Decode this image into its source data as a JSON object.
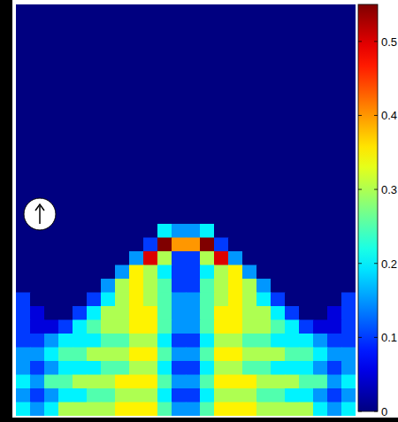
{
  "chart_data": {
    "type": "heatmap",
    "tick_labels": false,
    "colorbar_range": [
      0,
      0.55
    ],
    "colorbar_ticks": [
      0,
      0.1,
      0.2,
      0.3,
      0.4,
      0.5
    ],
    "cells": [
      [
        0,
        0,
        0,
        0,
        0,
        0,
        0,
        0,
        0,
        0,
        0,
        0,
        0,
        0,
        0,
        0,
        0,
        0,
        0,
        0,
        0,
        0,
        0,
        0
      ],
      [
        0,
        0,
        0,
        0,
        0,
        0,
        0,
        0,
        0,
        0,
        0,
        0,
        0,
        0,
        0,
        0,
        0,
        0,
        0,
        0,
        0,
        0,
        0,
        0
      ],
      [
        0,
        0,
        0,
        0,
        0,
        0,
        0,
        0,
        0,
        0,
        0,
        0,
        0,
        0,
        0,
        0,
        0,
        0,
        0,
        0,
        0,
        0,
        0,
        0
      ],
      [
        0,
        0,
        0,
        0,
        0,
        0,
        0,
        0,
        0,
        0,
        0,
        0,
        0,
        0,
        0,
        0,
        0,
        0,
        0,
        0,
        0,
        0,
        0,
        0
      ],
      [
        0,
        0,
        0,
        0,
        0,
        0,
        0,
        0,
        0,
        0,
        0,
        0,
        0,
        0,
        0,
        0,
        0,
        0,
        0,
        0,
        0,
        0,
        0,
        0
      ],
      [
        0,
        0,
        0,
        0,
        0,
        0,
        0,
        0,
        0,
        0,
        0,
        0,
        0,
        0,
        0,
        0,
        0,
        0,
        0,
        0,
        0,
        0,
        0,
        0
      ],
      [
        0,
        0,
        0,
        0,
        0,
        0,
        0,
        0,
        0,
        0,
        0,
        0,
        0,
        0,
        0,
        0,
        0,
        0,
        0,
        0,
        0,
        0,
        0,
        0
      ],
      [
        0,
        0,
        0,
        0,
        0,
        0,
        0,
        0,
        0,
        0,
        0,
        0,
        0,
        0,
        0,
        0,
        0,
        0,
        0,
        0,
        0,
        0,
        0,
        0
      ],
      [
        0,
        0,
        0,
        0,
        0,
        0,
        0,
        0,
        0,
        0,
        0,
        0,
        0,
        0,
        0,
        0,
        0,
        0,
        0,
        0,
        0,
        0,
        0,
        0
      ],
      [
        0,
        0,
        0,
        0,
        0,
        0,
        0,
        0,
        0,
        0,
        0,
        0,
        0,
        0,
        0,
        0,
        0,
        0,
        0,
        0,
        0,
        0,
        0,
        0
      ],
      [
        0,
        0,
        0,
        0,
        0,
        0,
        0,
        0,
        0,
        0,
        0,
        0,
        0,
        0,
        0,
        0,
        0,
        0,
        0,
        0,
        0,
        0,
        0,
        0
      ],
      [
        0,
        0,
        0,
        0,
        0,
        0,
        0,
        0,
        0,
        0,
        0,
        0,
        0,
        0,
        0,
        0,
        0,
        0,
        0,
        0,
        0,
        0,
        0,
        0
      ],
      [
        0,
        0,
        0,
        0,
        0,
        0,
        0,
        0,
        0,
        0,
        0,
        0,
        0,
        0,
        0,
        0,
        0,
        0,
        0,
        0,
        0,
        0,
        0,
        0
      ],
      [
        0,
        0,
        0,
        0,
        0,
        0,
        0,
        0,
        0,
        0,
        0,
        0,
        0,
        0,
        0,
        0,
        0,
        0,
        0,
        0,
        0,
        0,
        0,
        0
      ],
      [
        0,
        0,
        0,
        0,
        0,
        0,
        0,
        0,
        0,
        0,
        0,
        0,
        0,
        0,
        0,
        0,
        0,
        0,
        0,
        0,
        0,
        0,
        0,
        0
      ],
      [
        0,
        0,
        0,
        0,
        0,
        0,
        0,
        0,
        0,
        0,
        0,
        0,
        0,
        0,
        0,
        0,
        0,
        0,
        0,
        0,
        0,
        0,
        0,
        0
      ],
      [
        0,
        0,
        0,
        0,
        0,
        0,
        0,
        0,
        0,
        0,
        0.2,
        0.15,
        0.15,
        0.2,
        0,
        0,
        0,
        0,
        0,
        0,
        0,
        0,
        0,
        0
      ],
      [
        0,
        0,
        0,
        0,
        0,
        0,
        0,
        0,
        0,
        0.1,
        0.55,
        0.4,
        0.4,
        0.55,
        0.1,
        0,
        0,
        0,
        0,
        0,
        0,
        0,
        0,
        0
      ],
      [
        0,
        0,
        0,
        0,
        0,
        0,
        0,
        0,
        0.15,
        0.5,
        0.3,
        0.1,
        0.1,
        0.3,
        0.5,
        0.15,
        0,
        0,
        0,
        0,
        0,
        0,
        0,
        0
      ],
      [
        0,
        0,
        0,
        0,
        0,
        0,
        0,
        0.15,
        0.35,
        0.3,
        0.2,
        0.1,
        0.1,
        0.2,
        0.3,
        0.35,
        0.15,
        0,
        0,
        0,
        0,
        0,
        0,
        0
      ],
      [
        0,
        0,
        0,
        0,
        0,
        0,
        0.15,
        0.3,
        0.35,
        0.3,
        0.25,
        0.1,
        0.1,
        0.25,
        0.3,
        0.35,
        0.3,
        0.15,
        0,
        0,
        0,
        0,
        0,
        0
      ],
      [
        0.1,
        0,
        0,
        0,
        0,
        0.1,
        0.2,
        0.3,
        0.35,
        0.3,
        0.25,
        0.15,
        0.15,
        0.25,
        0.3,
        0.35,
        0.3,
        0.2,
        0.1,
        0,
        0,
        0,
        0,
        0.1
      ],
      [
        0.1,
        0.05,
        0,
        0,
        0.1,
        0.2,
        0.3,
        0.3,
        0.35,
        0.35,
        0.25,
        0.15,
        0.15,
        0.25,
        0.35,
        0.35,
        0.3,
        0.3,
        0.2,
        0.1,
        0,
        0,
        0.05,
        0.1
      ],
      [
        0.1,
        0.05,
        0.05,
        0.1,
        0.2,
        0.25,
        0.3,
        0.3,
        0.35,
        0.35,
        0.25,
        0.15,
        0.15,
        0.25,
        0.35,
        0.35,
        0.3,
        0.3,
        0.25,
        0.2,
        0.1,
        0.05,
        0.05,
        0.1
      ],
      [
        0.1,
        0.1,
        0.15,
        0.2,
        0.2,
        0.2,
        0.25,
        0.25,
        0.3,
        0.3,
        0.2,
        0.1,
        0.1,
        0.2,
        0.3,
        0.3,
        0.25,
        0.25,
        0.2,
        0.2,
        0.2,
        0.15,
        0.1,
        0.1
      ],
      [
        0.15,
        0.15,
        0.2,
        0.25,
        0.25,
        0.3,
        0.3,
        0.3,
        0.35,
        0.35,
        0.25,
        0.15,
        0.15,
        0.25,
        0.35,
        0.35,
        0.3,
        0.3,
        0.3,
        0.25,
        0.25,
        0.2,
        0.15,
        0.15
      ],
      [
        0.15,
        0.1,
        0.15,
        0.2,
        0.2,
        0.2,
        0.25,
        0.25,
        0.3,
        0.3,
        0.2,
        0.1,
        0.1,
        0.2,
        0.3,
        0.3,
        0.25,
        0.25,
        0.2,
        0.2,
        0.2,
        0.15,
        0.1,
        0.15
      ],
      [
        0.2,
        0.15,
        0.25,
        0.25,
        0.3,
        0.3,
        0.3,
        0.35,
        0.35,
        0.35,
        0.25,
        0.15,
        0.15,
        0.25,
        0.35,
        0.35,
        0.35,
        0.3,
        0.3,
        0.3,
        0.25,
        0.25,
        0.15,
        0.2
      ],
      [
        0.15,
        0.1,
        0.15,
        0.2,
        0.2,
        0.25,
        0.25,
        0.3,
        0.3,
        0.3,
        0.2,
        0.1,
        0.1,
        0.2,
        0.3,
        0.3,
        0.3,
        0.25,
        0.25,
        0.2,
        0.2,
        0.15,
        0.1,
        0.15
      ],
      [
        0.2,
        0.15,
        0.2,
        0.3,
        0.3,
        0.3,
        0.3,
        0.35,
        0.35,
        0.35,
        0.25,
        0.15,
        0.15,
        0.25,
        0.35,
        0.35,
        0.35,
        0.3,
        0.3,
        0.3,
        0.3,
        0.2,
        0.15,
        0.2
      ]
    ]
  }
}
